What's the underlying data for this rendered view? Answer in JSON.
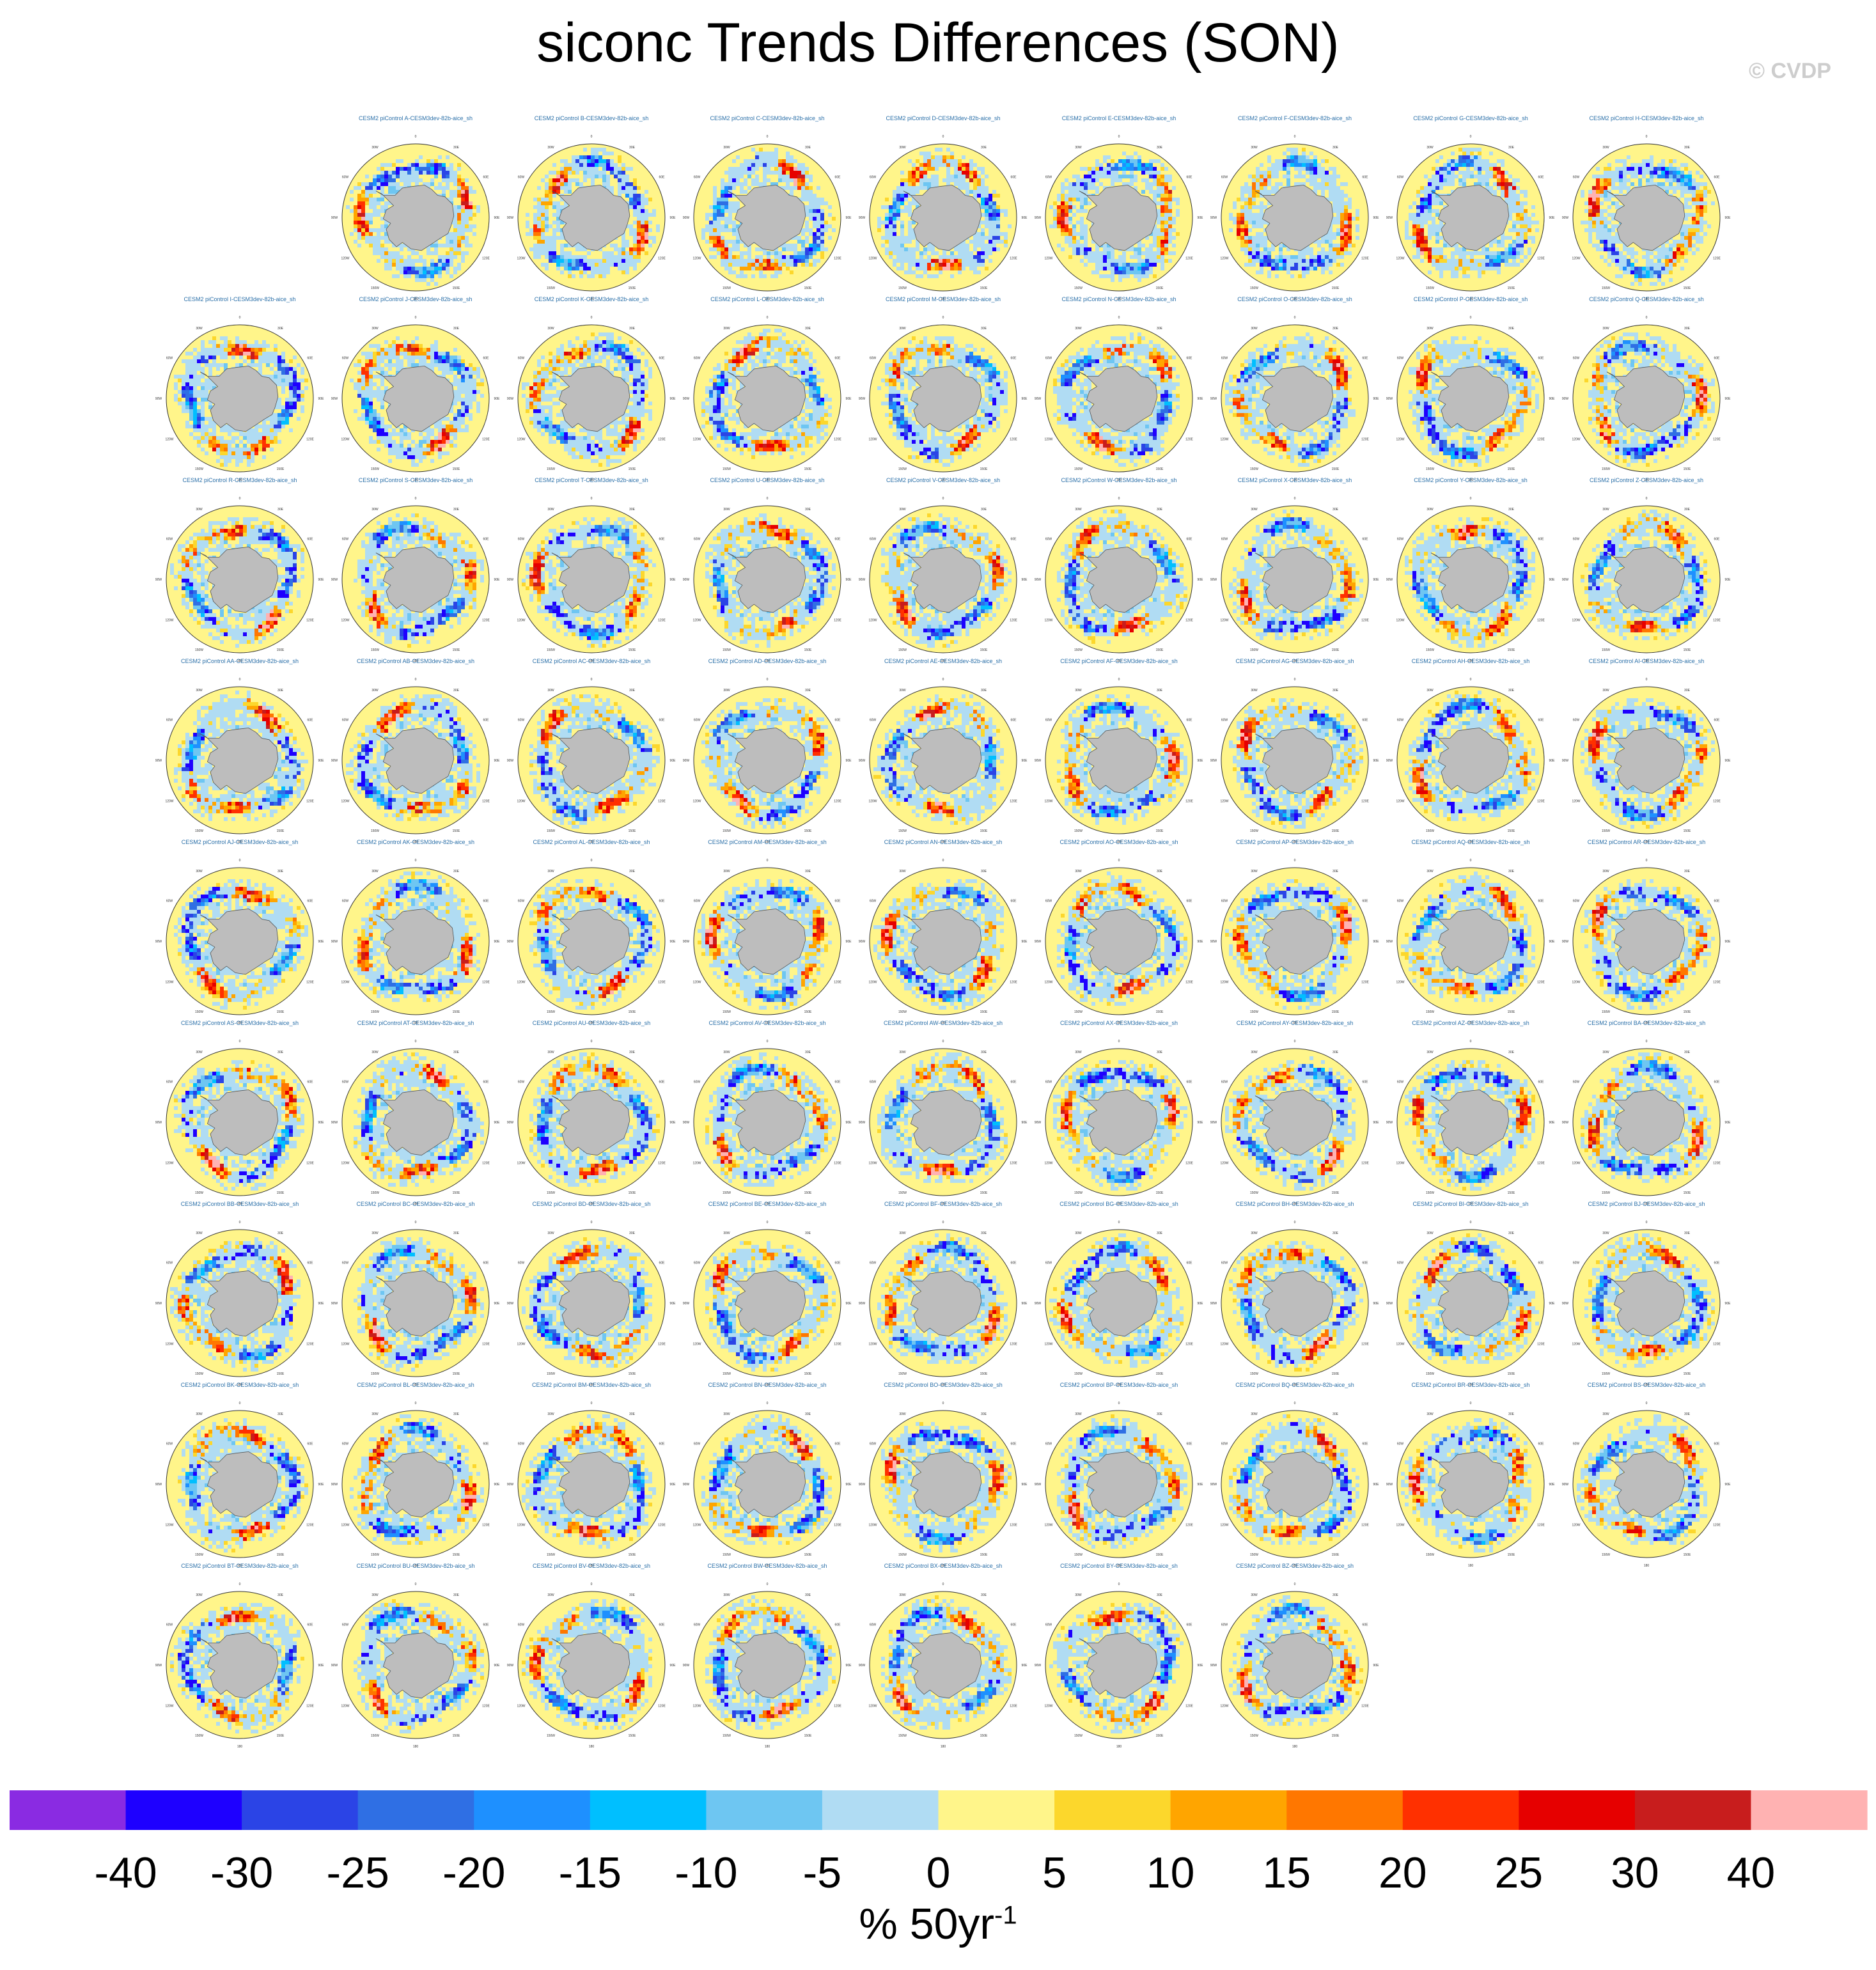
{
  "title": "siconc Trends Differences (SON)",
  "watermark": "© CVDP",
  "units": {
    "main": "% 50yr",
    "exp": "-1"
  },
  "chart_data": {
    "type": "heatmap",
    "title": "siconc Trends Differences (SON)",
    "projection": "south polar stereographic",
    "panel_title_template": "CESM2 piControl {member}-CESM3dev-82b-aice_sh",
    "members": [
      "A",
      "B",
      "C",
      "D",
      "E",
      "F",
      "G",
      "H",
      "I",
      "J",
      "K",
      "L",
      "M",
      "N",
      "O",
      "P",
      "Q",
      "R",
      "S",
      "T",
      "U",
      "V",
      "W",
      "X",
      "Y",
      "Z",
      "AA",
      "AB",
      "AC",
      "AD",
      "AE",
      "AF",
      "AG",
      "AH",
      "AI",
      "AJ",
      "AK",
      "AL",
      "AM",
      "AN",
      "AO",
      "AP",
      "AQ",
      "AR",
      "AS",
      "AT",
      "AU",
      "AV",
      "AW",
      "AX",
      "AY",
      "AZ",
      "BA",
      "BB",
      "BC",
      "BD",
      "BE",
      "BF",
      "BG",
      "BH",
      "BI",
      "BJ",
      "BK",
      "BL",
      "BM",
      "BN",
      "BO",
      "BP",
      "BQ",
      "BR",
      "BS",
      "BT",
      "BU",
      "BV",
      "BW",
      "BX",
      "BY",
      "BZ"
    ],
    "longitude_labels": [
      "0",
      "30E",
      "60E",
      "90E",
      "120E",
      "150E",
      "180",
      "150W",
      "120W",
      "90W",
      "60W",
      "30W"
    ],
    "colorbar": {
      "ticks": [
        "-40",
        "-30",
        "-25",
        "-20",
        "-15",
        "-10",
        "-5",
        "0",
        "5",
        "10",
        "15",
        "20",
        "25",
        "30",
        "40"
      ],
      "colors": [
        "#8a2be2",
        "#1e00ff",
        "#2b44e6",
        "#2f6fe4",
        "#1e90ff",
        "#00bfff",
        "#6ec6f2",
        "#b0dcf3",
        "#fff58a",
        "#fcd72c",
        "#ffa500",
        "#ff7700",
        "#ff3000",
        "#e60000",
        "#c81d1d",
        "#ffb2b2"
      ],
      "units": "% 50yr-1"
    }
  }
}
